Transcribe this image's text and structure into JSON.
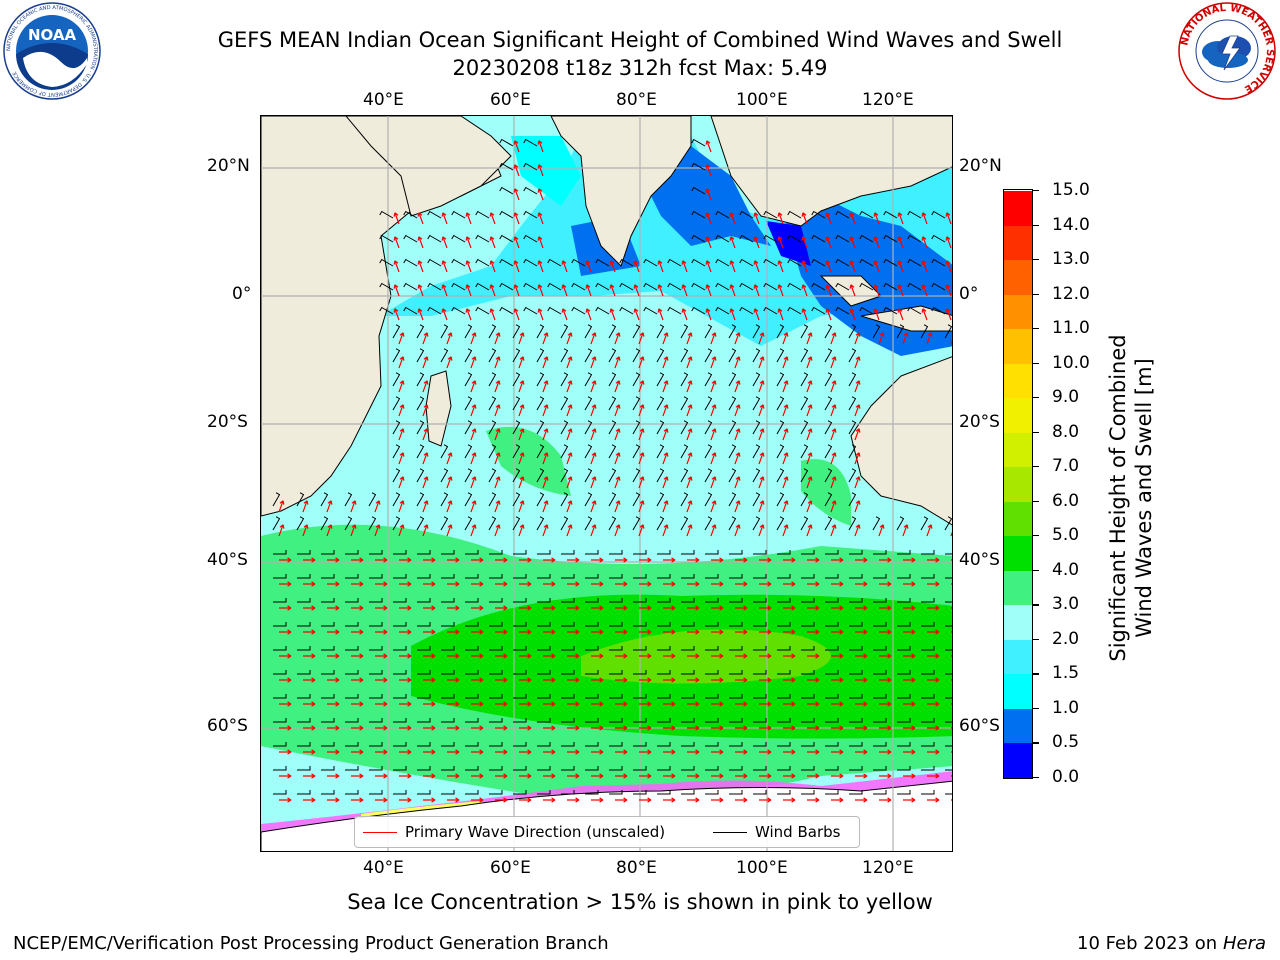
{
  "title": {
    "line1": "GEFS MEAN Indian Ocean Significant Height of Combined Wind Waves and Swell",
    "line2": "20230208 t18z 312h fcst   Max: 5.49"
  },
  "map": {
    "lon_ticks": [
      "40°E",
      "60°E",
      "80°E",
      "100°E",
      "120°E"
    ],
    "lat_ticks": [
      "20°N",
      "0°",
      "20°S",
      "40°S",
      "60°S"
    ],
    "note": "Sea Ice Concentration > 15% is shown in pink to yellow"
  },
  "legend": {
    "wave_label": "Primary Wave Direction (unscaled)",
    "wind_label": "Wind Barbs"
  },
  "colorbar": {
    "label_line1": "Significant Height of Combined",
    "label_line2": "Wind Waves and Swell [m]",
    "ticks": [
      "0.0",
      "0.5",
      "1.0",
      "1.5",
      "2.0",
      "3.0",
      "4.0",
      "5.0",
      "6.0",
      "7.0",
      "8.0",
      "9.0",
      "10.0",
      "11.0",
      "12.0",
      "13.0",
      "14.0",
      "15.0"
    ],
    "colors": [
      "#0000ff",
      "#0070f0",
      "#00ffff",
      "#40f0ff",
      "#a0fff8",
      "#40f080",
      "#00e000",
      "#60e000",
      "#a8e800",
      "#d0f000",
      "#f0f000",
      "#ffe000",
      "#ffc000",
      "#ff9000",
      "#ff6000",
      "#ff3000",
      "#ff0000"
    ]
  },
  "footer": {
    "left": "NCEP/EMC/Verification Post Processing Product Generation Branch",
    "date": "10 Feb 2023 on",
    "host": "Hera"
  },
  "logos": {
    "noaa_text": "NOAA",
    "noaa_ring": "NATIONAL OCEANIC AND ATMOSPHERIC ADMINISTRATION · U.S. DEPARTMENT OF COMMERCE",
    "nws_ring": "NATIONAL WEATHER SERVICE"
  }
}
